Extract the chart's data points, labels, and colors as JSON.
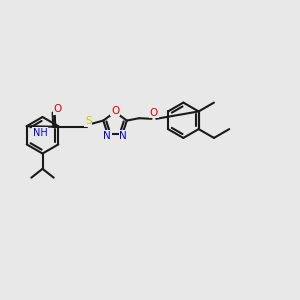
{
  "bg_color": "#e8e8e8",
  "bond_color": "#1a1a1a",
  "N_color": "#0000ee",
  "O_color": "#dd0000",
  "S_color": "#cccc00",
  "lw": 1.5,
  "fs": 7.5,
  "xlim": [
    0,
    10
  ],
  "ylim": [
    0,
    7
  ]
}
